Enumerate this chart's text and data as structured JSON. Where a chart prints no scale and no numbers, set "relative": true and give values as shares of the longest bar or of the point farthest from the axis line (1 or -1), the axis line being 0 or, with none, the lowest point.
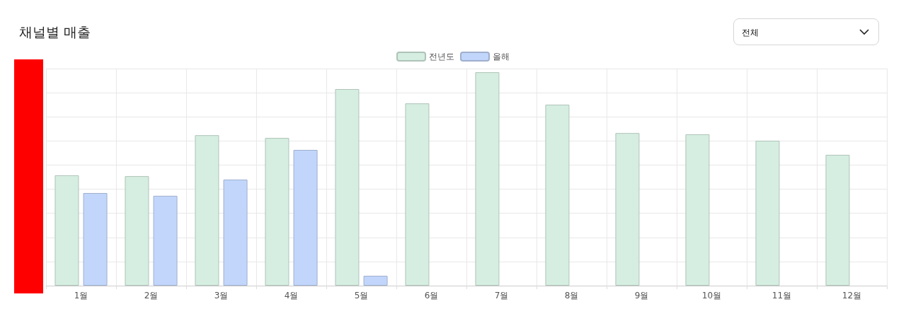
{
  "chart_data": {
    "type": "bar",
    "title": "채널별 매출",
    "annotations": [
      "전체"
    ],
    "relative": true,
    "grid": true,
    "legend": "top",
    "categories": [
      "1월",
      "2월",
      "3월",
      "4월",
      "5월",
      "6월",
      "7월",
      "8월",
      "9월",
      "10월",
      "11월",
      "12월"
    ],
    "series": [
      {
        "name": "전년도",
        "color": "#d5eee1",
        "values": [
          0.517,
          0.513,
          0.705,
          0.692,
          0.921,
          0.854,
          1,
          0.848,
          0.715,
          0.709,
          0.679,
          0.613
        ]
      },
      {
        "name": "올해",
        "color": "#c2d6fb",
        "values": [
          0.434,
          0.421,
          0.497,
          0.636,
          0.046,
          null,
          null,
          null,
          null,
          null,
          null,
          null
        ]
      }
    ]
  }
}
